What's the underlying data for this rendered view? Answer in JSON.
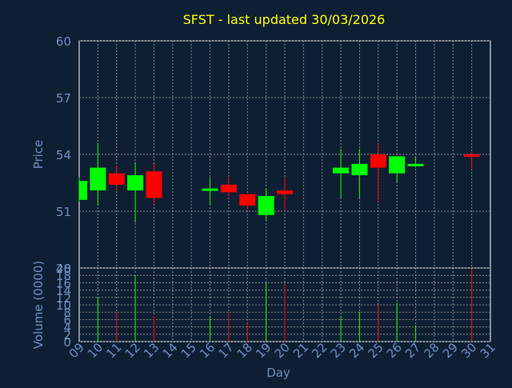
{
  "colors": {
    "background": "#0f1f33",
    "title": "#ffff00",
    "axis_text": "#6e8fc4",
    "plot_bg": "#ffffff",
    "grid": "#8a8a8a",
    "up": "#00ff00",
    "down": "#ff0000"
  },
  "chart_data": [
    {
      "type": "candlestick",
      "title": "SFST - last updated 30/03/2026",
      "ylabel": "Price",
      "ylim": [
        48,
        60
      ],
      "yticks": [
        "60",
        "57",
        "54",
        "51",
        "48"
      ],
      "x_days": [
        9,
        10,
        11,
        12,
        13,
        14,
        15,
        16,
        17,
        18,
        19,
        20,
        21,
        22,
        23,
        24,
        25,
        26,
        27,
        28,
        29,
        30,
        31
      ],
      "candles": [
        {
          "day": 9,
          "open": 51.6,
          "close": 52.6,
          "high": 52.8,
          "low": 51.5
        },
        {
          "day": 10,
          "open": 52.1,
          "close": 53.3,
          "high": 54.6,
          "low": 51.3
        },
        {
          "day": 11,
          "open": 53.0,
          "close": 52.4,
          "high": 53.4,
          "low": 52.1
        },
        {
          "day": 12,
          "open": 52.1,
          "close": 52.9,
          "high": 53.6,
          "low": 50.4
        },
        {
          "day": 13,
          "open": 53.1,
          "close": 51.7,
          "high": 53.5,
          "low": 51.4
        },
        {
          "day": 16,
          "open": 52.1,
          "close": 52.2,
          "high": 52.8,
          "low": 51.3
        },
        {
          "day": 17,
          "open": 52.4,
          "close": 52.0,
          "high": 52.8,
          "low": 51.8
        },
        {
          "day": 18,
          "open": 51.9,
          "close": 51.3,
          "high": 51.9,
          "low": 51.1
        },
        {
          "day": 19,
          "open": 50.8,
          "close": 51.8,
          "high": 52.2,
          "low": 50.5
        },
        {
          "day": 20,
          "open": 52.1,
          "close": 51.9,
          "high": 52.8,
          "low": 51.0
        },
        {
          "day": 23,
          "open": 53.0,
          "close": 53.3,
          "high": 54.3,
          "low": 51.7
        },
        {
          "day": 24,
          "open": 52.9,
          "close": 53.5,
          "high": 54.3,
          "low": 51.7
        },
        {
          "day": 25,
          "open": 54.0,
          "close": 53.3,
          "high": 54.6,
          "low": 51.5
        },
        {
          "day": 26,
          "open": 53.0,
          "close": 53.9,
          "high": 53.9,
          "low": 52.5
        },
        {
          "day": 27,
          "open": 53.4,
          "close": 53.5,
          "high": 53.9,
          "low": 53.3
        },
        {
          "day": 30,
          "open": 54.0,
          "close": 53.9,
          "high": 54.1,
          "low": 53.2
        }
      ]
    },
    {
      "type": "bar",
      "ylabel": "Volume (0000)",
      "xlabel": "Day",
      "ylim": [
        0,
        20
      ],
      "yticks": [
        "20",
        "18",
        "16",
        "14",
        "12",
        "10",
        "8",
        "6",
        "4",
        "2",
        "0"
      ],
      "x_tick_labels": [
        "09",
        "10",
        "11",
        "12",
        "13",
        "14",
        "15",
        "16",
        "17",
        "18",
        "19",
        "20",
        "21",
        "22",
        "23",
        "24",
        "25",
        "26",
        "27",
        "28",
        "29",
        "30",
        "31"
      ],
      "bars": [
        {
          "day": 10,
          "value": 12,
          "direction": "up"
        },
        {
          "day": 11,
          "value": 8,
          "direction": "down"
        },
        {
          "day": 12,
          "value": 18,
          "direction": "up"
        },
        {
          "day": 13,
          "value": 7,
          "direction": "down"
        },
        {
          "day": 16,
          "value": 7,
          "direction": "up"
        },
        {
          "day": 17,
          "value": 8,
          "direction": "down"
        },
        {
          "day": 18,
          "value": 5,
          "direction": "down"
        },
        {
          "day": 19,
          "value": 16,
          "direction": "up"
        },
        {
          "day": 20,
          "value": 15.5,
          "direction": "down"
        },
        {
          "day": 23,
          "value": 7,
          "direction": "up"
        },
        {
          "day": 24,
          "value": 8,
          "direction": "up"
        },
        {
          "day": 25,
          "value": 10,
          "direction": "down"
        },
        {
          "day": 26,
          "value": 10.5,
          "direction": "up"
        },
        {
          "day": 27,
          "value": 4.5,
          "direction": "up"
        },
        {
          "day": 30,
          "value": 19.5,
          "direction": "down"
        }
      ]
    }
  ]
}
